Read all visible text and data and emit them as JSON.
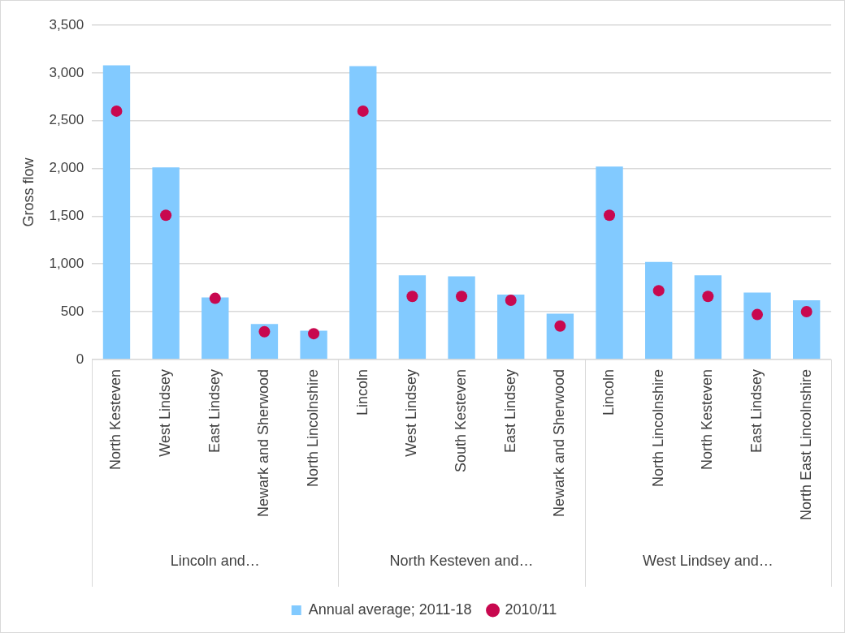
{
  "chart_data": {
    "type": "bar",
    "ylabel": "Gross flow",
    "categories": [
      "North Kesteven",
      "West Lindsey",
      "East Lindsey",
      "Newark and Sherwood",
      "North Lincolnshire",
      "Lincoln",
      "West Lindsey",
      "South Kesteven",
      "East Lindsey",
      "Newark and Sherwood",
      "Lincoln",
      "North Lincolnshire",
      "North Kesteven",
      "East Lindsey",
      "North East Lincolnshire"
    ],
    "annotations": [
      "Lincoln and…",
      "North Kesteven and…",
      "West Lindsey and…"
    ],
    "series": [
      {
        "name": "Annual average; 2011-18",
        "color": "#82caff",
        "values": [
          3080,
          2010,
          650,
          370,
          300,
          3070,
          880,
          870,
          680,
          480,
          2020,
          1020,
          880,
          700,
          620
        ]
      },
      {
        "name": "2010/11",
        "type": "scatter",
        "color": "#c8084f",
        "values": [
          2600,
          1510,
          640,
          290,
          270,
          2600,
          660,
          660,
          620,
          350,
          1510,
          720,
          660,
          470,
          500
        ]
      }
    ],
    "ylim": [
      0,
      3500
    ],
    "yticks": [
      0,
      500,
      {
        "value": 1000,
        "label": "1,000"
      },
      {
        "value": 1500,
        "label": "1,500"
      },
      {
        "value": 2000,
        "label": "2,000"
      },
      {
        "value": 2500,
        "label": "2,500"
      },
      {
        "value": 3000,
        "label": "3,000"
      },
      {
        "value": 3500,
        "label": "3,500"
      }
    ],
    "grid": "y",
    "legend": "bottom",
    "marker": "circle"
  }
}
